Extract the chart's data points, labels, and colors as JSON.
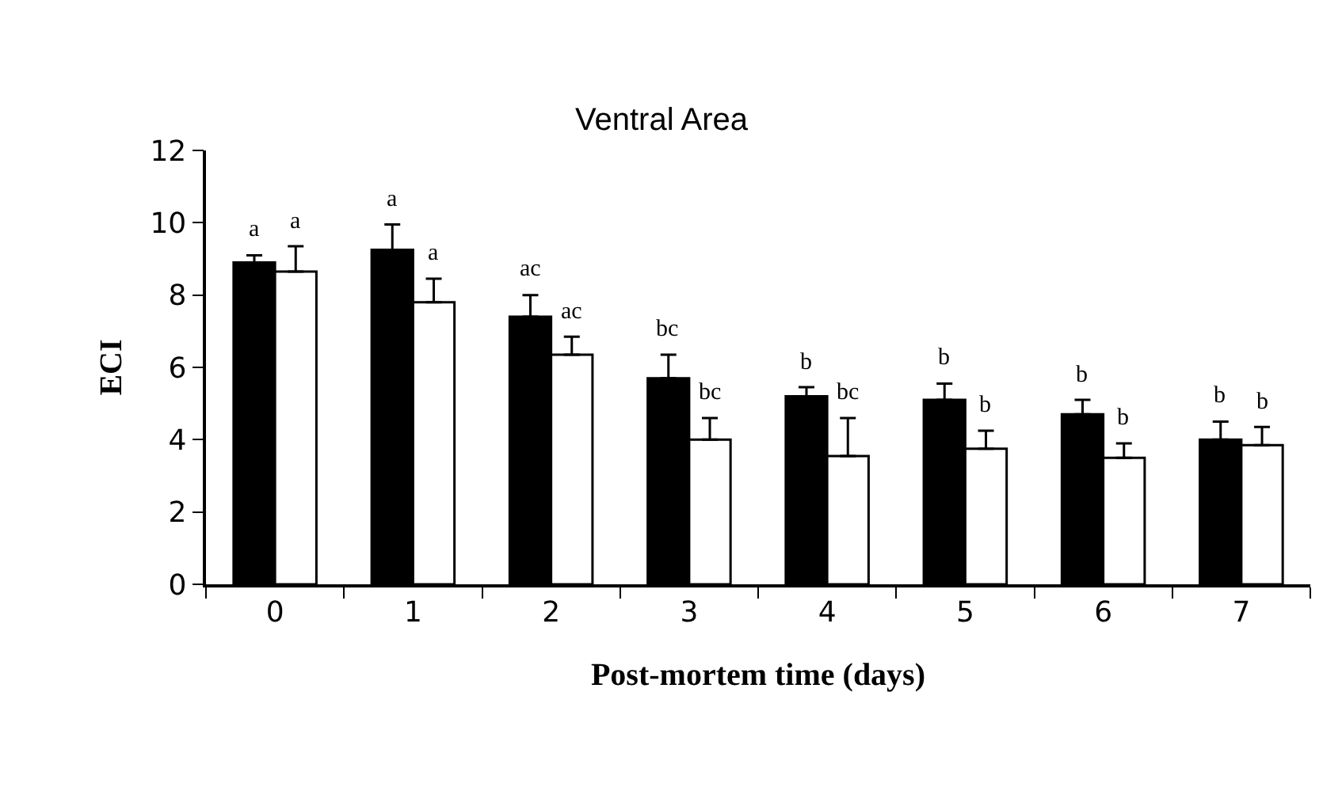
{
  "chart_data": {
    "type": "bar",
    "title": "Ventral Area",
    "xlabel": "Post-mortem time (days)",
    "ylabel": "ECI",
    "categories": [
      "0",
      "1",
      "2",
      "3",
      "4",
      "5",
      "6",
      "7"
    ],
    "series": [
      {
        "color": "#000000",
        "values": [
          8.9,
          9.25,
          7.4,
          5.7,
          5.2,
          5.1,
          4.7,
          4.0
        ],
        "errors": [
          [
            8.9,
            9.1
          ],
          [
            9.25,
            9.95
          ],
          [
            7.4,
            8.0
          ],
          [
            5.7,
            6.35
          ],
          [
            5.2,
            5.45
          ],
          [
            5.1,
            5.55
          ],
          [
            4.7,
            5.1
          ],
          [
            4.0,
            4.5
          ]
        ],
        "value_labels": [
          "a",
          "a",
          "ac",
          "bc",
          "b",
          "b",
          "b",
          "b"
        ]
      },
      {
        "color": "#ffffff",
        "values": [
          8.65,
          7.8,
          6.35,
          4.0,
          3.55,
          3.75,
          3.5,
          3.85
        ],
        "errors": [
          [
            8.65,
            9.35
          ],
          [
            7.8,
            8.45
          ],
          [
            6.35,
            6.85
          ],
          [
            4.0,
            4.6
          ],
          [
            3.55,
            4.6
          ],
          [
            3.75,
            4.25
          ],
          [
            3.5,
            3.9
          ],
          [
            3.85,
            4.35
          ]
        ],
        "value_labels": [
          "a",
          "a",
          "ac",
          "bc",
          "bc",
          "b",
          "b",
          "b"
        ]
      }
    ],
    "ylim": [
      0,
      12
    ],
    "yticks": [
      0,
      2,
      4,
      6,
      8,
      10,
      12
    ],
    "grid": false
  }
}
